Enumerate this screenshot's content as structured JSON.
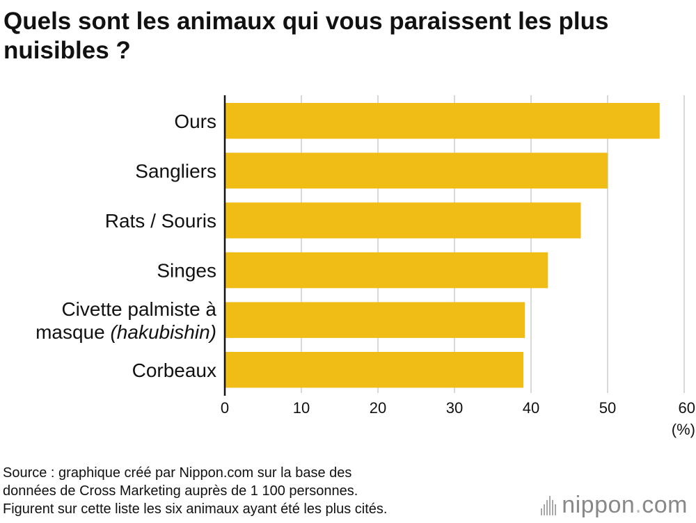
{
  "title": "Quels sont les animaux qui vous paraissent les plus nuisibles ?",
  "chart_data": {
    "type": "bar",
    "orientation": "horizontal",
    "title": "Quels sont les animaux qui vous paraissent les plus nuisibles ?",
    "categories": [
      {
        "text": "Ours"
      },
      {
        "text": "Sangliers"
      },
      {
        "text": "Rats / Souris"
      },
      {
        "text": "Singes"
      },
      {
        "text": "Civette palmiste à masque ",
        "italic": "(hakubishin)"
      },
      {
        "text": "Corbeaux"
      }
    ],
    "values": [
      56.8,
      50.0,
      46.5,
      42.2,
      39.2,
      39.0
    ],
    "xlim": [
      0,
      60
    ],
    "xticks": [
      0,
      10,
      20,
      30,
      40,
      50,
      60
    ],
    "xunit": "(%)",
    "grid": true,
    "bar_color": "#F0BC16",
    "grid_color": "#CCCCCC",
    "axis_color": "#111111"
  },
  "footer": {
    "source_line1": "Source : graphique créé par Nippon.com sur la base des",
    "source_line2": "données de Cross Marketing auprès de 1 100 personnes.",
    "source_line3": "Figurent sur cette liste les six animaux ayant été les plus cités."
  },
  "logo": {
    "name": "nippon",
    "dot": ".",
    "suffix": "com"
  }
}
